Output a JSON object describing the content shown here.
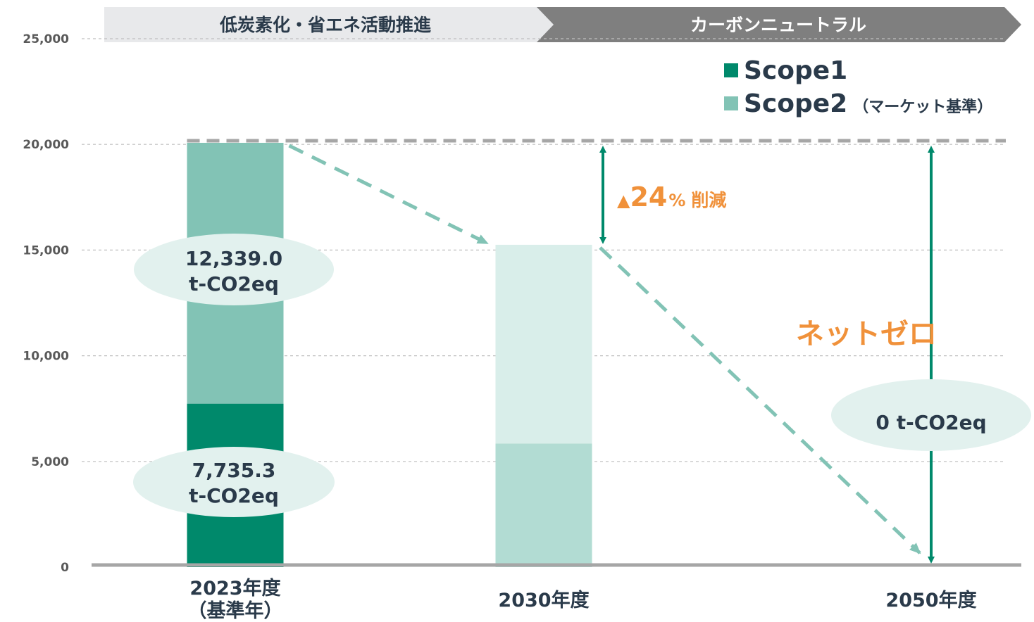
{
  "phases": [
    {
      "label": "低炭素化・省エネ活動推進",
      "fill": "#e8e9eb",
      "text_color": "#2a3a4a"
    },
    {
      "label": "カーボンニュートラル",
      "fill": "#7f7f7f",
      "text_color": "#ffffff"
    }
  ],
  "legend": [
    {
      "label": "Scope1",
      "color": "#00896b"
    },
    {
      "label": "Scope2",
      "sublabel": "（マーケット基準）",
      "color": "#82c3b5"
    }
  ],
  "annotations": {
    "bubble_scope2_value": "12,339.0",
    "bubble_scope2_unit": "t-CO2eq",
    "bubble_scope1_value": "7,735.3",
    "bubble_scope1_unit": "t-CO2eq",
    "reduction_triangle": "▲",
    "reduction_number": "24",
    "reduction_percent": "%",
    "reduction_word": "削減",
    "net_zero": "ネットゼロ",
    "zero_value": "0",
    "zero_unit": "t-CO2eq"
  },
  "colors": {
    "scope1": "#00896b",
    "scope2": "#82c3b5",
    "scope1_target": "#b2dcd3",
    "scope2_target": "#d9eeea",
    "arrow": "#00896b",
    "trend": "#82c3b5",
    "accent": "#f0913a",
    "bubble": "#e2f1ee"
  },
  "chart_data": {
    "type": "bar",
    "stacked": true,
    "categories": [
      "2023年度\n（基準年）",
      "2030年度",
      "2050年度"
    ],
    "series": [
      {
        "name": "Scope1",
        "values": [
          7735.3,
          5850,
          0
        ]
      },
      {
        "name": "Scope2（マーケット基準）",
        "values": [
          12339.0,
          9400,
          0
        ]
      }
    ],
    "ylim": [
      0,
      25000
    ],
    "yticks": [
      0,
      5000,
      10000,
      15000,
      20000,
      25000
    ],
    "ytick_labels": [
      "0",
      "5,000",
      "10,000",
      "15,000",
      "20,000",
      "25,000"
    ],
    "grid": true,
    "legend_position": "top-right",
    "title": "",
    "xlabel": "",
    "ylabel": ""
  }
}
